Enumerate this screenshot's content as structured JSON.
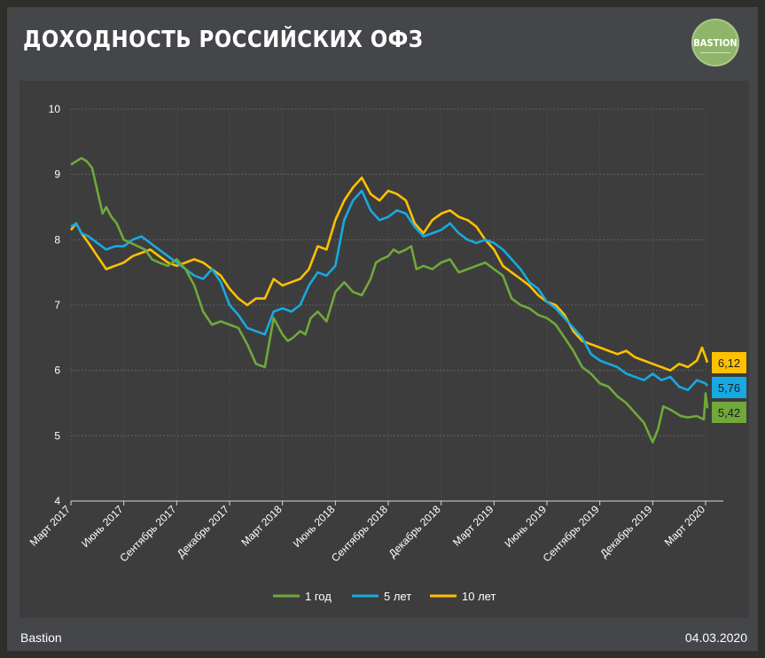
{
  "header": {
    "title": "ДОХОДНОСТЬ РОССИЙСКИХ ОФЗ",
    "logo_text": "BASTION"
  },
  "footer": {
    "source": "Bastion",
    "date": "04.03.2020"
  },
  "colors": {
    "green": "#70a83a",
    "blue": "#17a9e1",
    "gold": "#ffc000",
    "background": "#3d3d3d"
  },
  "chart_data": {
    "type": "line",
    "title": "ДОХОДНОСТЬ РОССИЙСКИХ ОФЗ",
    "xlabel": "",
    "ylabel": "",
    "ylim": [
      4,
      10
    ],
    "yticks": [
      "4",
      "5",
      "6",
      "7",
      "8",
      "9",
      "10"
    ],
    "x_tick_labels": [
      "Март 2017",
      "Июнь 2017",
      "Сентябрь 2017",
      "Декабрь 2017",
      "Март 2018",
      "Июнь 2018",
      "Сентябрь 2018",
      "Декабрь 2018",
      "Март 2019",
      "Июнь 2019",
      "Сентябрь 2019",
      "Декабрь 2019",
      "Март 2020"
    ],
    "x_unit": "months since March 2017",
    "legend_position": "bottom-center",
    "grid": true,
    "series": [
      {
        "name": "1 год",
        "color": "#70a83a",
        "end_label": "5,42",
        "x": [
          0,
          0.3,
          0.6,
          0.9,
          1.2,
          1.5,
          1.8,
          2.0,
          2.3,
          2.6,
          3.0,
          3.4,
          3.8,
          4.2,
          4.6,
          5.0,
          5.5,
          6.0,
          6.5,
          7.0,
          7.5,
          8.0,
          8.5,
          9.0,
          9.5,
          10.0,
          10.5,
          11.0,
          11.5,
          12.0,
          12.3,
          12.6,
          13.0,
          13.3,
          13.6,
          14.0,
          14.5,
          15.0,
          15.5,
          16.0,
          16.5,
          17.0,
          17.3,
          17.6,
          18.0,
          18.3,
          18.6,
          19.0,
          19.3,
          19.6,
          20.0,
          20.5,
          21.0,
          21.5,
          22.0,
          22.5,
          23.0,
          23.5,
          24.0,
          24.5,
          25.0,
          25.5,
          26.0,
          26.5,
          27.0,
          27.5,
          28.0,
          28.5,
          29.0,
          29.5,
          30.0,
          30.5,
          31.0,
          31.5,
          32.0,
          32.5,
          33.0,
          33.3,
          33.6,
          34.0,
          34.3,
          34.6,
          35.0,
          35.5,
          35.9,
          36.0,
          36.1
        ],
        "values": [
          9.15,
          9.2,
          9.25,
          9.2,
          9.1,
          8.75,
          8.4,
          8.5,
          8.35,
          8.25,
          8.0,
          7.95,
          7.9,
          7.85,
          7.7,
          7.65,
          7.6,
          7.7,
          7.55,
          7.3,
          6.9,
          6.7,
          6.75,
          6.7,
          6.65,
          6.4,
          6.1,
          6.05,
          6.8,
          6.55,
          6.45,
          6.5,
          6.6,
          6.55,
          6.8,
          6.9,
          6.75,
          7.2,
          7.35,
          7.2,
          7.15,
          7.4,
          7.65,
          7.7,
          7.75,
          7.85,
          7.8,
          7.85,
          7.9,
          7.55,
          7.6,
          7.55,
          7.65,
          7.7,
          7.5,
          7.55,
          7.6,
          7.65,
          7.55,
          7.45,
          7.1,
          7.0,
          6.95,
          6.85,
          6.8,
          6.7,
          6.5,
          6.3,
          6.05,
          5.95,
          5.8,
          5.75,
          5.6,
          5.5,
          5.35,
          5.2,
          4.9,
          5.1,
          5.45,
          5.4,
          5.35,
          5.3,
          5.28,
          5.3,
          5.25,
          5.65,
          5.42
        ]
      },
      {
        "name": "5 лет",
        "color": "#17a9e1",
        "end_label": "5,76",
        "x": [
          0,
          0.3,
          0.6,
          1.0,
          1.5,
          2.0,
          2.5,
          3.0,
          3.5,
          4.0,
          4.5,
          5.0,
          5.5,
          6.0,
          6.5,
          7.0,
          7.5,
          8.0,
          8.5,
          9.0,
          9.5,
          10.0,
          10.5,
          11.0,
          11.5,
          12.0,
          12.5,
          13.0,
          13.5,
          14.0,
          14.5,
          15.0,
          15.5,
          16.0,
          16.5,
          17.0,
          17.5,
          18.0,
          18.5,
          19.0,
          19.5,
          20.0,
          20.5,
          21.0,
          21.5,
          22.0,
          22.5,
          23.0,
          23.5,
          24.0,
          24.5,
          25.0,
          25.5,
          26.0,
          26.5,
          27.0,
          27.5,
          28.0,
          28.5,
          29.0,
          29.5,
          30.0,
          30.5,
          31.0,
          31.5,
          32.0,
          32.5,
          33.0,
          33.5,
          34.0,
          34.5,
          35.0,
          35.5,
          36.0,
          36.1
        ],
        "values": [
          8.2,
          8.25,
          8.1,
          8.05,
          7.95,
          7.85,
          7.9,
          7.9,
          8.0,
          8.05,
          7.95,
          7.85,
          7.75,
          7.65,
          7.55,
          7.45,
          7.4,
          7.55,
          7.35,
          7.0,
          6.85,
          6.65,
          6.6,
          6.55,
          6.9,
          6.95,
          6.9,
          7.0,
          7.3,
          7.5,
          7.45,
          7.6,
          8.3,
          8.6,
          8.75,
          8.45,
          8.3,
          8.35,
          8.45,
          8.4,
          8.2,
          8.05,
          8.1,
          8.15,
          8.25,
          8.1,
          8.0,
          7.95,
          8.0,
          7.95,
          7.85,
          7.7,
          7.55,
          7.35,
          7.25,
          7.05,
          6.95,
          6.8,
          6.65,
          6.5,
          6.25,
          6.15,
          6.1,
          6.05,
          5.95,
          5.9,
          5.85,
          5.95,
          5.85,
          5.9,
          5.75,
          5.7,
          5.85,
          5.8,
          5.76
        ]
      },
      {
        "name": "10 лет",
        "color": "#ffc000",
        "end_label": "6,12",
        "x": [
          0,
          0.3,
          0.6,
          1.0,
          1.5,
          2.0,
          2.5,
          3.0,
          3.5,
          4.0,
          4.5,
          5.0,
          5.5,
          6.0,
          6.5,
          7.0,
          7.5,
          8.0,
          8.5,
          9.0,
          9.5,
          10.0,
          10.5,
          11.0,
          11.5,
          12.0,
          12.5,
          13.0,
          13.5,
          14.0,
          14.5,
          15.0,
          15.5,
          16.0,
          16.5,
          17.0,
          17.5,
          18.0,
          18.5,
          19.0,
          19.5,
          20.0,
          20.5,
          21.0,
          21.5,
          22.0,
          22.5,
          23.0,
          23.5,
          24.0,
          24.5,
          25.0,
          25.5,
          26.0,
          26.5,
          27.0,
          27.5,
          28.0,
          28.5,
          29.0,
          29.5,
          30.0,
          30.5,
          31.0,
          31.5,
          32.0,
          32.5,
          33.0,
          33.5,
          34.0,
          34.5,
          35.0,
          35.5,
          35.8,
          36.0,
          36.1
        ],
        "values": [
          8.15,
          8.25,
          8.1,
          7.95,
          7.75,
          7.55,
          7.6,
          7.65,
          7.75,
          7.8,
          7.85,
          7.75,
          7.65,
          7.6,
          7.65,
          7.7,
          7.65,
          7.55,
          7.45,
          7.25,
          7.1,
          7.0,
          7.1,
          7.1,
          7.4,
          7.3,
          7.35,
          7.4,
          7.55,
          7.9,
          7.85,
          8.3,
          8.6,
          8.8,
          8.95,
          8.7,
          8.6,
          8.75,
          8.7,
          8.6,
          8.25,
          8.1,
          8.3,
          8.4,
          8.45,
          8.35,
          8.3,
          8.2,
          8.0,
          7.85,
          7.6,
          7.5,
          7.4,
          7.3,
          7.15,
          7.05,
          7.0,
          6.85,
          6.6,
          6.45,
          6.4,
          6.35,
          6.3,
          6.25,
          6.3,
          6.2,
          6.15,
          6.1,
          6.05,
          6.0,
          6.1,
          6.05,
          6.15,
          6.35,
          6.2,
          6.12
        ]
      }
    ]
  }
}
